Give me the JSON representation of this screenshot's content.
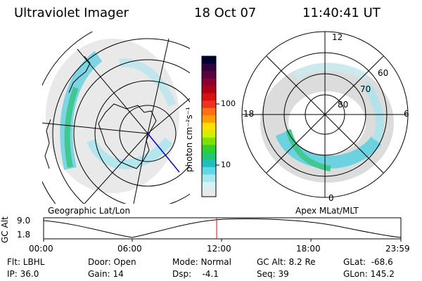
{
  "header": {
    "title": "Ultraviolet Imager",
    "date": "18 Oct 07",
    "time": "11:40:41 UT"
  },
  "left_panel": {
    "caption": "Geographic Lat/Lon"
  },
  "colorbar": {
    "unit_label": "photon cm⁻²s⁻¹",
    "tick_labels": [
      "100",
      "10"
    ],
    "colors": [
      "#000030",
      "#30003a",
      "#5a0040",
      "#8a0030",
      "#b00018",
      "#d81010",
      "#f03020",
      "#ff7010",
      "#ffa000",
      "#ffe000",
      "#d0f000",
      "#80e000",
      "#30d030",
      "#20c870",
      "#20c0c0",
      "#60d8e8",
      "#a8e8f0",
      "#d8f0f0",
      "#e8e8e8"
    ]
  },
  "right_panel": {
    "caption": "Apex MLat/MLT",
    "mlt_labels": {
      "top": "12",
      "left": "18",
      "right": "6",
      "bottom": "0"
    },
    "mlat_labels": [
      "60",
      "70",
      "80"
    ]
  },
  "altitude_plot": {
    "ylabel": "GC Alt",
    "y_ticks": [
      "9.0",
      "1.8"
    ],
    "x_ticks": [
      "00:00",
      "06:00",
      "12:00",
      "18:00",
      "23:59"
    ]
  },
  "info": {
    "flt": "Flt: LBHL",
    "ip": "IP: 36.0",
    "door": "Door: Open",
    "gain": "Gain: 14",
    "mode": "Mode: Normal",
    "dsp": "Dsp:    -4.1",
    "gc_alt": "GC Alt: 8.2 Re",
    "seq": "Seq: 39",
    "glat": "GLat:  -68.6",
    "glon": "GLon: 145.2"
  },
  "accent_colors": {
    "marker": "#ff0000",
    "grid": "#000000",
    "ray": "#0000cc"
  }
}
